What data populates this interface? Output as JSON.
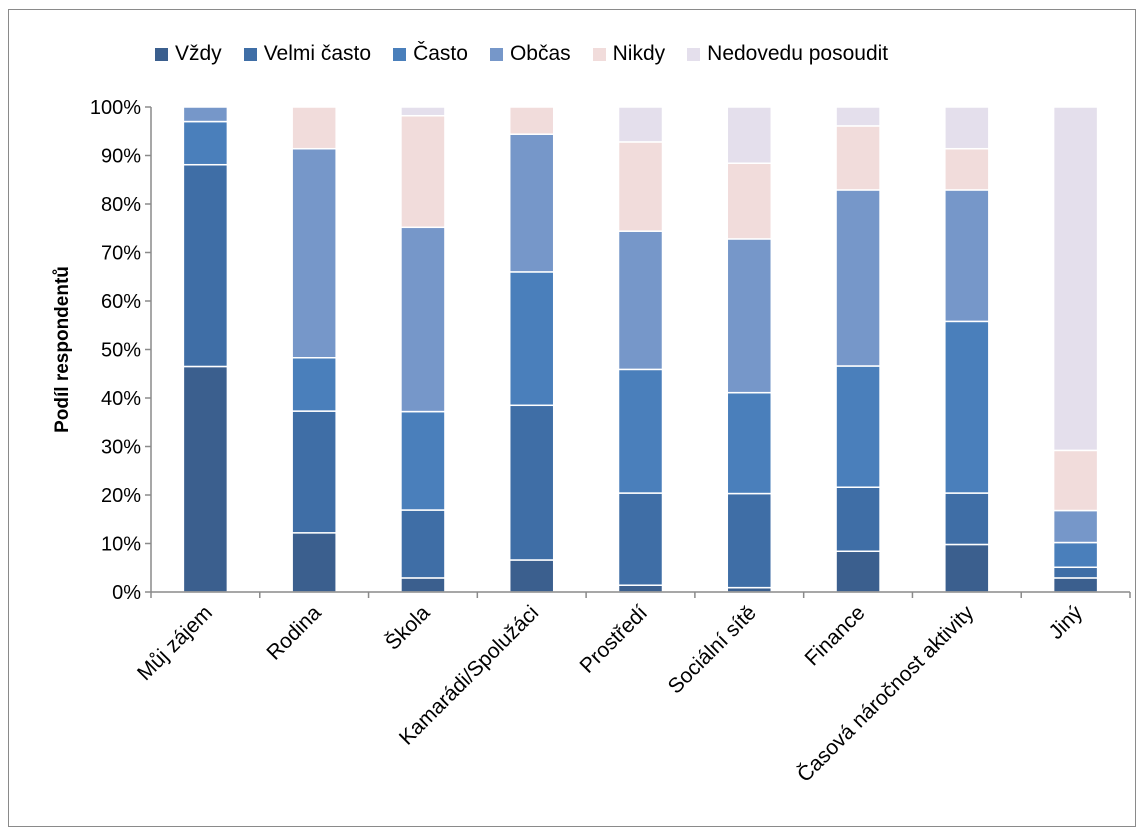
{
  "chart_data": {
    "type": "bar",
    "stacked": true,
    "percent": true,
    "title": "",
    "xlabel": "",
    "ylabel": "Podíl respondentů",
    "ylim": [
      0,
      100
    ],
    "yticks": [
      "0%",
      "10%",
      "20%",
      "30%",
      "40%",
      "50%",
      "60%",
      "70%",
      "80%",
      "90%",
      "100%"
    ],
    "legend_position": "top",
    "categories": [
      "Můj zájem",
      "Rodina",
      "Škola",
      "Kamarádi/Spolužáci",
      "Prostředí",
      "Sociální sítě",
      "Finance",
      "Časová náročnost aktivity",
      "Jiný"
    ],
    "series": [
      {
        "name": "Vždy",
        "color": "#3b5f8e",
        "values": [
          46.5,
          12.2,
          2.9,
          6.6,
          1.4,
          0.9,
          8.4,
          9.8,
          2.9
        ]
      },
      {
        "name": "Velmi často",
        "color": "#3f6ea6",
        "values": [
          41.6,
          25.1,
          14.0,
          31.9,
          19.0,
          19.4,
          13.2,
          10.6,
          2.2
        ]
      },
      {
        "name": "Často",
        "color": "#4a7fbb",
        "values": [
          8.9,
          11.0,
          20.3,
          27.5,
          25.5,
          20.8,
          25.0,
          35.4,
          5.1
        ]
      },
      {
        "name": "Občas",
        "color": "#7697c9",
        "values": [
          3.0,
          43.1,
          38.0,
          28.4,
          28.5,
          31.7,
          36.3,
          27.1,
          6.6
        ]
      },
      {
        "name": "Nikdy",
        "color": "#f1dcdb",
        "values": [
          0.0,
          8.6,
          23.0,
          5.6,
          18.4,
          15.6,
          13.2,
          8.5,
          12.4
        ]
      },
      {
        "name": "Nedovedu posoudit",
        "color": "#e4dfec",
        "values": [
          0.0,
          0.0,
          1.8,
          0.0,
          7.2,
          11.6,
          3.9,
          8.6,
          70.8
        ]
      }
    ]
  }
}
